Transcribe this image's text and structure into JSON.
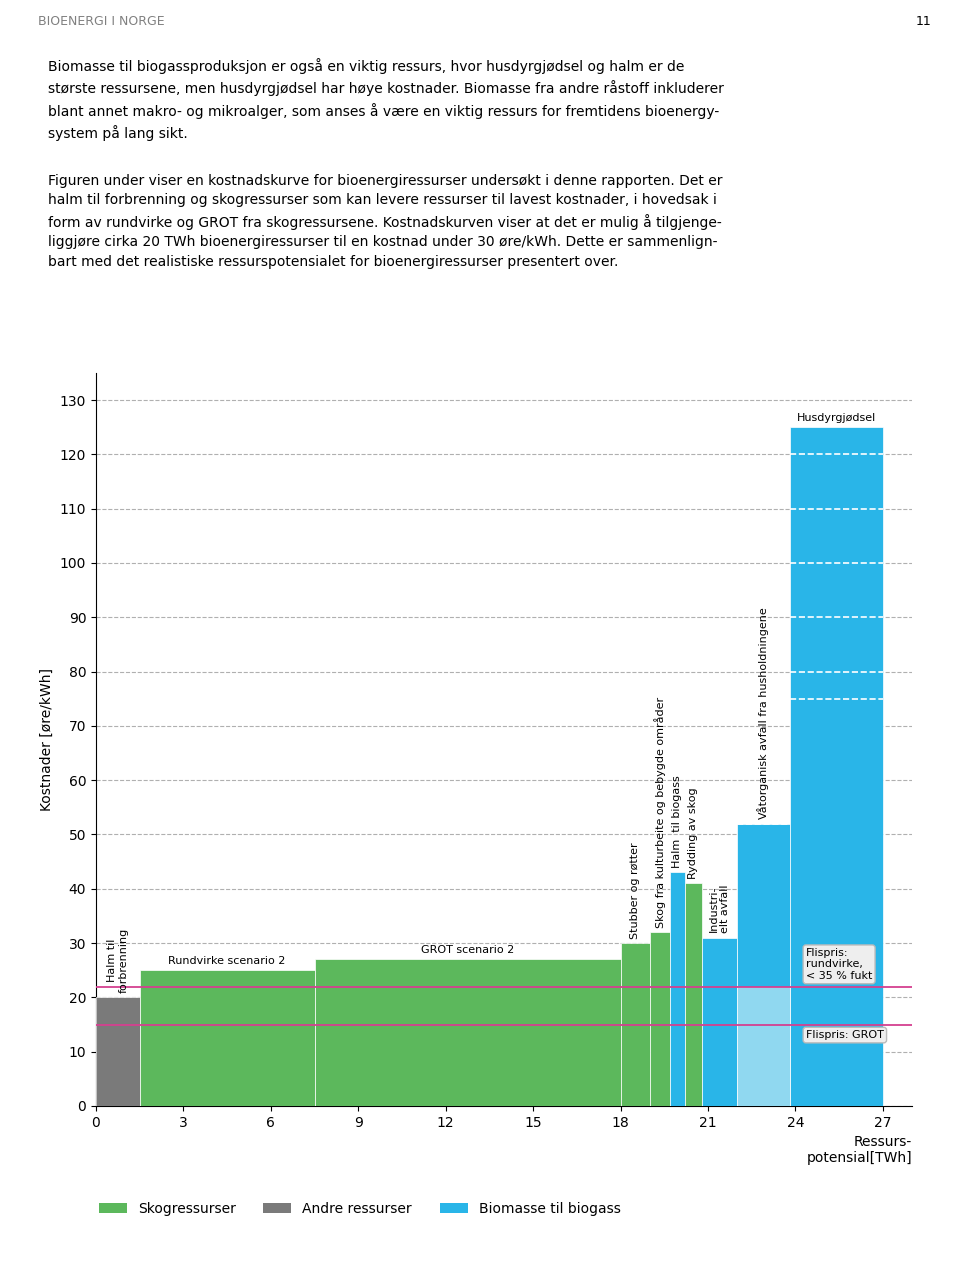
{
  "page": {
    "header": "BIOENERGI I NORGE",
    "page_number": "11",
    "paragraphs": [
      "Biomasse til biogassproduksjon er også en viktig ressurs, hvor husdyrgjødsel og halm er de\nstørste ressursene, men husdyrgjødsel har høye kostnader. Biomasse fra andre råstoff inkluderer\nblant annet makro- og mikroalger, som anses å være en viktig ressurs for fremtidens bioenergy-\nsystem på lang sikt.",
      "Figuren under viser en kostnadskurve for bioenergiressurser undersøkt i denne rapporten. Det er\nhalm til forbrenning og skogressurser som kan levere ressurser til lavest kostnader, i hovedsak i\nform av rundvirke og GROT fra skogressursene. Kostnadskurven viser at det er mulig å tilgjenge-\nliggjøre cirka 20 TWh bioenergiressurser til en kostnad under 30 øre/kWh. Dette er sammenlign-\nbart med det realistiske ressurspotensialet for bioenergiressurser presentert over."
    ]
  },
  "chart_data": {
    "type": "bar",
    "ylabel": "Kostnader [øre/kWh]",
    "xlabel": "Ressurs-\npotensial[TWh]",
    "xlim": [
      0,
      28
    ],
    "ylim": [
      0,
      135
    ],
    "xticks": [
      0,
      3,
      6,
      9,
      12,
      15,
      18,
      21,
      24,
      27
    ],
    "yticks": [
      0,
      10,
      20,
      30,
      40,
      50,
      60,
      70,
      80,
      90,
      100,
      110,
      120,
      130
    ],
    "grid": true,
    "bars": {
      "labels": [
        "Halm til\nforbrenning",
        "Rundvirke scenario 2",
        "GROT scenario 2",
        "Stubber og røtter",
        "Skog fra kulturbeite og bebygde områder",
        "Halm  til biogass",
        "Rydding av skog",
        "Industri-\nelt avfall",
        "Våtorganisk avfall fra husholdningene",
        "Husdyrgjødsel"
      ],
      "x": [
        0.0,
        1.5,
        7.5,
        18.0,
        19.0,
        19.7,
        20.2,
        20.8,
        22.0,
        23.8
      ],
      "widths": [
        1.5,
        6.0,
        10.5,
        1.0,
        0.7,
        0.5,
        0.6,
        1.2,
        1.8,
        3.2
      ],
      "values": [
        20,
        25,
        27,
        30,
        32,
        43,
        41,
        31,
        52,
        125
      ],
      "colors": [
        "#7a7a7a",
        "#5cb85c",
        "#5cb85c",
        "#5cb85c",
        "#5cb85c",
        "#29b5e8",
        "#5cb85c",
        "#29b5e8",
        "#29b5e8",
        "#29b5e8"
      ]
    },
    "overlay_bar": {
      "x": 22.0,
      "width": 1.8,
      "value": 22,
      "color": "#90d8f0"
    },
    "hlines": [
      {
        "y": 22,
        "label": "Flispris:\nrundvirke,\n< 35 % fukt",
        "color": "#d44090"
      },
      {
        "y": 15,
        "label": "Flispris: GROT",
        "color": "#d44090"
      }
    ],
    "dashed_segments": [
      {
        "x": [
          23.8,
          27.0
        ],
        "y": 75
      },
      {
        "x": [
          23.8,
          27.0
        ],
        "y": 80
      },
      {
        "x": [
          23.8,
          27.0
        ],
        "y": 90
      },
      {
        "x": [
          23.8,
          27.0
        ],
        "y": 100
      },
      {
        "x": [
          23.8,
          27.0
        ],
        "y": 110
      },
      {
        "x": [
          23.8,
          27.0
        ],
        "y": 120
      },
      {
        "x": [
          22.0,
          23.8
        ],
        "y": 52
      }
    ],
    "legend_items": [
      {
        "name": "Skogressurser",
        "color": "#5cb85c"
      },
      {
        "name": "Andre ressurser",
        "color": "#7a7a7a"
      },
      {
        "name": "Biomasse til biogass",
        "color": "#29b5e8"
      }
    ]
  }
}
